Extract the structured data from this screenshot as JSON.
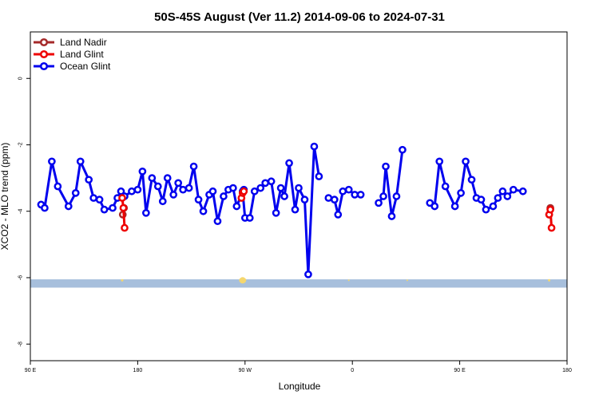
{
  "chart_data": {
    "type": "line",
    "title": "50S-45S August (Ver 11.2)   2014-09-06 to 2024-07-31",
    "xlabel": "Longitude",
    "ylabel": "XCO2 - MLO trend (ppm)",
    "x_ticks": [
      {
        "value": 90,
        "label": "90 E"
      },
      {
        "value": 180,
        "label": "180"
      },
      {
        "value": 270,
        "label": "90 W"
      },
      {
        "value": 360,
        "label": "0"
      },
      {
        "value": 450,
        "label": "90 E"
      },
      {
        "value": 540,
        "label": "180"
      }
    ],
    "y_ticks": [
      0,
      -2,
      -4,
      -6,
      -8
    ],
    "xlim": [
      90,
      540
    ],
    "ylim": [
      -8.5,
      1.4
    ],
    "grid": false,
    "legend_position": "top-left",
    "colors": {
      "land_nadir": "#a52a2a",
      "land_glint": "#ee0000",
      "ocean_glint": "#0000ee",
      "band": "#a7bfdc",
      "land_marks": "#f5d76e"
    },
    "series": [
      {
        "name": "Land Nadir",
        "color": "#a52a2a",
        "segments": [
          [
            [
              167.5,
              -4.1
            ],
            [
              168.5,
              -3.9
            ]
          ],
          [
            [
              525,
              -4.1
            ],
            [
              526,
              -3.9
            ]
          ]
        ]
      },
      {
        "name": "Land Glint",
        "color": "#ee0000",
        "segments": [
          [
            [
              167,
              -3.6
            ],
            [
              168,
              -3.9
            ],
            [
              169,
              -4.5
            ]
          ],
          [
            [
              267,
              -3.6
            ],
            [
              268,
              -3.45
            ],
            [
              269,
              -3.4
            ]
          ],
          [
            [
              525,
              -4.1
            ],
            [
              526,
              -3.95
            ],
            [
              527,
              -4.5
            ]
          ]
        ]
      },
      {
        "name": "Ocean Glint",
        "color": "#0000ee",
        "segments": [
          [
            [
              99,
              -3.8
            ],
            [
              102,
              -3.9
            ],
            [
              108,
              -2.5
            ],
            [
              113,
              -3.25
            ],
            [
              122,
              -3.85
            ],
            [
              128,
              -3.45
            ],
            [
              132,
              -2.5
            ],
            [
              139,
              -3.05
            ],
            [
              143,
              -3.6
            ],
            [
              148,
              -3.65
            ],
            [
              152,
              -3.95
            ],
            [
              159,
              -3.9
            ],
            [
              163,
              -3.6
            ],
            [
              166,
              -3.4
            ],
            [
              169,
              -3.55
            ],
            [
              175,
              -3.4
            ],
            [
              180,
              -3.35
            ],
            [
              184,
              -2.8
            ],
            [
              187,
              -4.05
            ],
            [
              192,
              -3.0
            ],
            [
              197,
              -3.25
            ],
            [
              201,
              -3.7
            ],
            [
              205,
              -3.0
            ],
            [
              210,
              -3.5
            ],
            [
              214,
              -3.15
            ],
            [
              218,
              -3.35
            ],
            [
              223,
              -3.3
            ],
            [
              227,
              -2.65
            ],
            [
              231,
              -3.65
            ],
            [
              235,
              -4.0
            ],
            [
              240,
              -3.5
            ],
            [
              243,
              -3.4
            ],
            [
              247,
              -4.3
            ],
            [
              252,
              -3.55
            ],
            [
              256,
              -3.35
            ],
            [
              260,
              -3.3
            ],
            [
              263,
              -3.85
            ],
            [
              269,
              -3.35
            ]
          ],
          [
            [
              268,
              -3.4
            ],
            [
              270,
              -4.2
            ],
            [
              274,
              -4.2
            ],
            [
              278,
              -3.4
            ],
            [
              283,
              -3.3
            ],
            [
              287,
              -3.15
            ],
            [
              292,
              -3.1
            ],
            [
              296,
              -4.05
            ],
            [
              300,
              -3.3
            ],
            [
              303,
              -3.55
            ],
            [
              307,
              -2.55
            ],
            [
              312,
              -3.95
            ],
            [
              315,
              -3.3
            ],
            [
              320,
              -3.65
            ],
            [
              323,
              -5.9
            ],
            [
              328,
              -2.05
            ],
            [
              332,
              -2.95
            ]
          ],
          [
            [
              340,
              -3.6
            ],
            [
              345,
              -3.65
            ],
            [
              348,
              -4.1
            ],
            [
              352,
              -3.4
            ],
            [
              357,
              -3.35
            ],
            [
              362,
              -3.5
            ],
            [
              367,
              -3.5
            ]
          ],
          [
            [
              382,
              -3.75
            ],
            [
              386,
              -3.55
            ],
            [
              388,
              -2.65
            ],
            [
              393,
              -4.15
            ],
            [
              397,
              -3.55
            ],
            [
              402,
              -2.15
            ]
          ],
          [
            [
              425,
              -3.75
            ],
            [
              429,
              -3.85
            ],
            [
              433,
              -2.5
            ],
            [
              438,
              -3.25
            ],
            [
              446,
              -3.85
            ],
            [
              451,
              -3.45
            ],
            [
              455,
              -2.5
            ],
            [
              460,
              -3.05
            ],
            [
              464,
              -3.6
            ],
            [
              468,
              -3.65
            ],
            [
              472,
              -3.95
            ],
            [
              478,
              -3.85
            ],
            [
              482,
              -3.6
            ],
            [
              486,
              -3.4
            ],
            [
              490,
              -3.55
            ],
            [
              495,
              -3.35
            ],
            [
              503,
              -3.4
            ]
          ]
        ]
      }
    ]
  }
}
